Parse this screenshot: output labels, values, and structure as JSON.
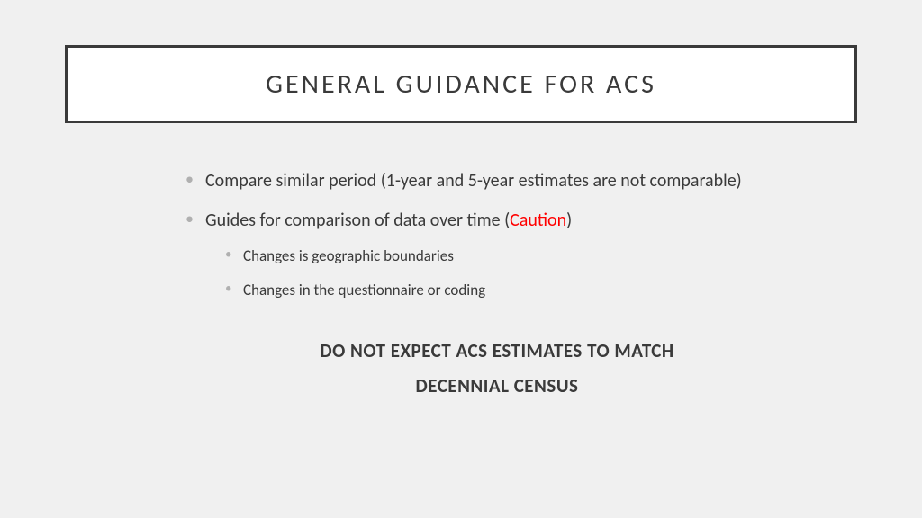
{
  "slide": {
    "title": "GENERAL GUIDANCE FOR ACS",
    "bullets": [
      {
        "text": "Compare similar period (1-year and 5-year estimates are not comparable)"
      },
      {
        "prefix": "Guides for comparison of data over time (",
        "caution": "Caution",
        "suffix": ")",
        "sub": [
          "Changes is geographic boundaries",
          "Changes in the questionnaire or coding"
        ]
      }
    ],
    "statement_line1": "DO NOT EXPECT ACS ESTIMATES TO MATCH",
    "statement_line2": "DECENNIAL CENSUS"
  },
  "colors": {
    "background": "#f0f0f0",
    "border": "#3a3a3a",
    "text": "#3a3a3a",
    "bullet": "#b0b0b0",
    "caution": "#ff0000",
    "title_bg": "#ffffff"
  }
}
